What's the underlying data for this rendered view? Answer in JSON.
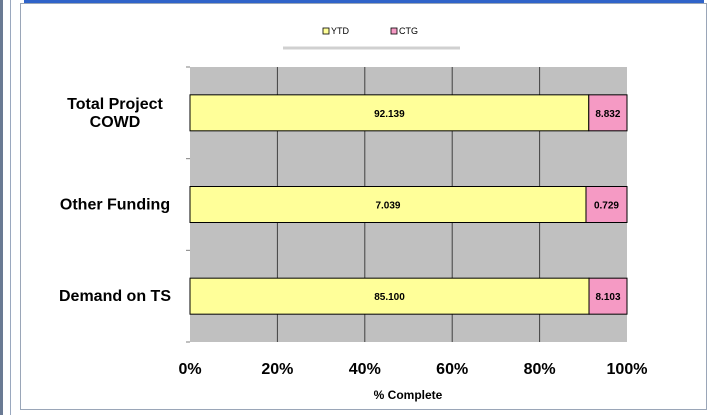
{
  "chart_data": {
    "type": "bar",
    "orientation": "horizontal",
    "stacked": true,
    "percent_stacked": true,
    "categories": [
      "Total Project COWD",
      "Other Funding",
      "Demand on TS"
    ],
    "series": [
      {
        "name": "YTD",
        "values": [
          92.139,
          7.039,
          85.1
        ],
        "color": "#ffff99"
      },
      {
        "name": "CTG",
        "values": [
          8.832,
          0.729,
          8.103
        ],
        "color": "#f59ac4"
      }
    ],
    "xlabel": "% Complete",
    "xticks": [
      "0%",
      "20%",
      "40%",
      "60%",
      "80%",
      "100%"
    ],
    "xlim": [
      0,
      100
    ],
    "grid": true,
    "legend": "top",
    "plot_background": "#c0c0c0",
    "bar_outline": "#000000"
  }
}
